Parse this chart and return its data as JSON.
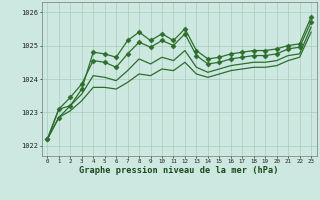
{
  "title": "Graphe pression niveau de la mer (hPa)",
  "background_color": "#cce8e0",
  "grid_color": "#aaccbb",
  "line_color": "#2d6e2d",
  "xlim": [
    -0.5,
    23.5
  ],
  "ylim": [
    1021.7,
    1026.3
  ],
  "yticks": [
    1022,
    1023,
    1024,
    1025,
    1026
  ],
  "xticks": [
    0,
    1,
    2,
    3,
    4,
    5,
    6,
    7,
    8,
    9,
    10,
    11,
    12,
    13,
    14,
    15,
    16,
    17,
    18,
    19,
    20,
    21,
    22,
    23
  ],
  "series": [
    [
      1022.2,
      1022.85,
      1023.2,
      1023.7,
      1024.8,
      1024.75,
      1024.65,
      1025.15,
      1025.4,
      1025.15,
      1025.35,
      1025.15,
      1025.5,
      1024.85,
      1024.6,
      1024.65,
      1024.75,
      1024.8,
      1024.85,
      1024.85,
      1024.9,
      1025.0,
      1025.05,
      1025.85
    ],
    [
      1022.2,
      1023.1,
      1023.45,
      1023.85,
      1024.55,
      1024.5,
      1024.35,
      1024.75,
      1025.1,
      1024.95,
      1025.15,
      1025.0,
      1025.35,
      1024.7,
      1024.45,
      1024.5,
      1024.6,
      1024.65,
      1024.7,
      1024.7,
      1024.75,
      1024.9,
      1024.95,
      1025.7
    ],
    [
      1022.2,
      1023.1,
      1023.2,
      1023.55,
      1024.1,
      1024.05,
      1023.95,
      1024.25,
      1024.6,
      1024.45,
      1024.65,
      1024.55,
      1024.85,
      1024.35,
      1024.2,
      1024.3,
      1024.4,
      1024.45,
      1024.5,
      1024.5,
      1024.55,
      1024.7,
      1024.75,
      1025.55
    ],
    [
      1022.2,
      1022.85,
      1023.05,
      1023.35,
      1023.75,
      1023.75,
      1023.7,
      1023.9,
      1024.15,
      1024.1,
      1024.3,
      1024.25,
      1024.5,
      1024.15,
      1024.05,
      1024.15,
      1024.25,
      1024.3,
      1024.35,
      1024.35,
      1024.4,
      1024.55,
      1024.65,
      1025.4
    ]
  ],
  "marker_on_series": [
    0,
    1
  ],
  "marker": "D",
  "markersize": 2.5
}
